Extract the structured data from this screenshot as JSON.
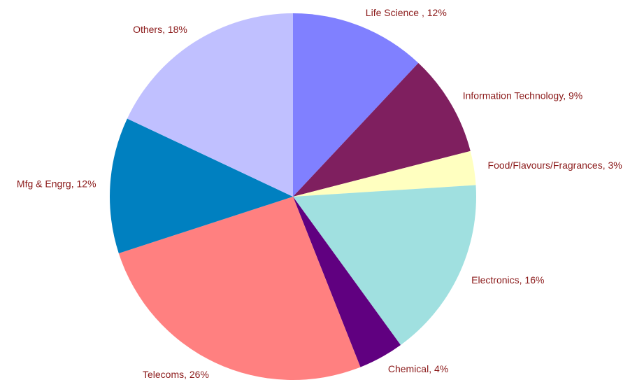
{
  "chart_data": {
    "type": "pie",
    "categories": [
      "Life Science ",
      "Information Technology",
      "Food/Flavours/Fragrances",
      "Electronics",
      "Chemical",
      "Telecoms",
      "Mfg & Engrg",
      "Others"
    ],
    "values": [
      12,
      9,
      3,
      16,
      4,
      26,
      12,
      18
    ],
    "value_labels": [
      ", 12%",
      ", 9%",
      ", 3%",
      ", 16%",
      ", 4%",
      ", 26%",
      ", 12%",
      ", 18%"
    ],
    "colors": [
      "#8080ff",
      "#7f1f5f",
      "#ffffc0",
      "#a0e0e0",
      "#600080",
      "#ff8080",
      "#0080c0",
      "#c0c0ff"
    ]
  }
}
